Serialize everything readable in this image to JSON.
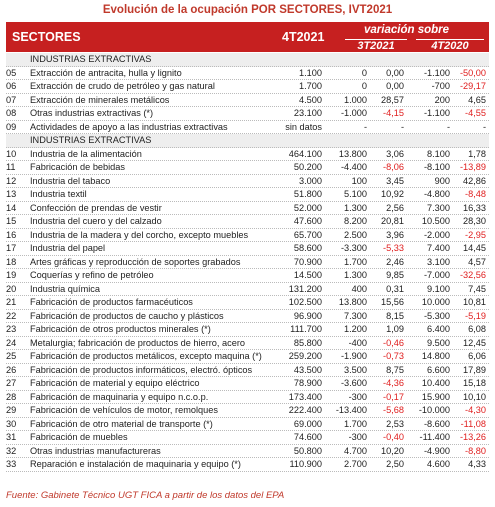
{
  "title": "Evolución de la ocupación POR SECTORES, IVT2021",
  "header": {
    "sectores": "SECTORES",
    "col_4t2021": "4T2021",
    "variacion": "variación sobre",
    "col_3t2021": "3T2021",
    "col_4t2020": "4T2020"
  },
  "rows": [
    {
      "group": "INDUSTRIAS EXTRACTIVAS"
    },
    {
      "code": "05",
      "name": "Extracción de antracita, hulla y lignito",
      "v": "1.100",
      "a3": "0",
      "p3": "0,00",
      "a4": "-1.100",
      "p4": "-50,00"
    },
    {
      "code": "06",
      "name": "Extracción de crudo de petróleo y gas natural",
      "v": "1.700",
      "a3": "0",
      "p3": "0,00",
      "a4": "-700",
      "p4": "-29,17"
    },
    {
      "code": "07",
      "name": "Extracción de minerales metálicos",
      "v": "4.500",
      "a3": "1.000",
      "p3": "28,57",
      "a4": "200",
      "p4": "4,65"
    },
    {
      "code": "08",
      "name": "Otras industrias extractivas (*)",
      "v": "23.100",
      "a3": "-1.000",
      "p3": "-4,15",
      "a4": "-1.100",
      "p4": "-4,55"
    },
    {
      "code": "09",
      "name": "Actividades de apoyo a las industrias extractivas",
      "v": "sin datos",
      "a3": "-",
      "p3": "-",
      "a4": "-",
      "p4": "-"
    },
    {
      "group": "INDUSTRIAS EXTRACTIVAS"
    },
    {
      "code": "10",
      "name": "Industria de la alimentación",
      "v": "464.100",
      "a3": "13.800",
      "p3": "3,06",
      "a4": "8.100",
      "p4": "1,78"
    },
    {
      "code": "11",
      "name": "Fabricación de bebidas",
      "v": "50.200",
      "a3": "-4.400",
      "p3": "-8,06",
      "a4": "-8.100",
      "p4": "-13,89"
    },
    {
      "code": "12",
      "name": "Industria del tabaco",
      "v": "3.000",
      "a3": "100",
      "p3": "3,45",
      "a4": "900",
      "p4": "42,86"
    },
    {
      "code": "13",
      "name": "Industria textil",
      "v": "51.800",
      "a3": "5.100",
      "p3": "10,92",
      "a4": "-4.800",
      "p4": "-8,48"
    },
    {
      "code": "14",
      "name": "Confección de prendas de vestir",
      "v": "52.000",
      "a3": "1.300",
      "p3": "2,56",
      "a4": "7.300",
      "p4": "16,33"
    },
    {
      "code": "15",
      "name": "Industria del cuero y del calzado",
      "v": "47.600",
      "a3": "8.200",
      "p3": "20,81",
      "a4": "10.500",
      "p4": "28,30"
    },
    {
      "code": "16",
      "name": "Industria de la madera y del corcho, excepto muebles",
      "v": "65.700",
      "a3": "2.500",
      "p3": "3,96",
      "a4": "-2.000",
      "p4": "-2,95"
    },
    {
      "code": "17",
      "name": "Industria del papel",
      "v": "58.600",
      "a3": "-3.300",
      "p3": "-5,33",
      "a4": "7.400",
      "p4": "14,45"
    },
    {
      "code": "18",
      "name": "Artes gráficas y reproducción de soportes grabados",
      "v": "70.900",
      "a3": "1.700",
      "p3": "2,46",
      "a4": "3.100",
      "p4": "4,57"
    },
    {
      "code": "19",
      "name": "Coquerías y refino de petróleo",
      "v": "14.500",
      "a3": "1.300",
      "p3": "9,85",
      "a4": "-7.000",
      "p4": "-32,56"
    },
    {
      "code": "20",
      "name": "Industria química",
      "v": "131.200",
      "a3": "400",
      "p3": "0,31",
      "a4": "9.100",
      "p4": "7,45"
    },
    {
      "code": "21",
      "name": "Fabricación de productos farmacéuticos",
      "v": "102.500",
      "a3": "13.800",
      "p3": "15,56",
      "a4": "10.000",
      "p4": "10,81"
    },
    {
      "code": "22",
      "name": "Fabricación de productos de caucho y plásticos",
      "v": "96.900",
      "a3": "7.300",
      "p3": "8,15",
      "a4": "-5.300",
      "p4": "-5,19"
    },
    {
      "code": "23",
      "name": "Fabricación de otros productos minerales (*)",
      "v": "111.700",
      "a3": "1.200",
      "p3": "1,09",
      "a4": "6.400",
      "p4": "6,08"
    },
    {
      "code": "24",
      "name": "Metalurgia; fabricación de productos de hierro, acero",
      "v": "85.800",
      "a3": "-400",
      "p3": "-0,46",
      "a4": "9.500",
      "p4": "12,45"
    },
    {
      "code": "25",
      "name": "Fabricación de productos metálicos, excepto maquina (*)",
      "v": "259.200",
      "a3": "-1.900",
      "p3": "-0,73",
      "a4": "14.800",
      "p4": "6,06"
    },
    {
      "code": "26",
      "name": "Fabricación de productos informáticos, electró. ópticos",
      "v": "43.500",
      "a3": "3.500",
      "p3": "8,75",
      "a4": "6.600",
      "p4": "17,89"
    },
    {
      "code": "27",
      "name": "Fabricación de material y equipo eléctrico",
      "v": "78.900",
      "a3": "-3.600",
      "p3": "-4,36",
      "a4": "10.400",
      "p4": "15,18"
    },
    {
      "code": "28",
      "name": "Fabricación de maquinaria y equipo n.c.o.p.",
      "v": "173.400",
      "a3": "-300",
      "p3": "-0,17",
      "a4": "15.900",
      "p4": "10,10"
    },
    {
      "code": "29",
      "name": "Fabricación de vehículos de motor, remolques",
      "v": "222.400",
      "a3": "-13.400",
      "p3": "-5,68",
      "a4": "-10.000",
      "p4": "-4,30"
    },
    {
      "code": "30",
      "name": "Fabricación de otro material de transporte (*)",
      "v": "69.000",
      "a3": "1.700",
      "p3": "2,53",
      "a4": "-8.600",
      "p4": "-11,08"
    },
    {
      "code": "31",
      "name": "Fabricación de muebles",
      "v": "74.600",
      "a3": "-300",
      "p3": "-0,40",
      "a4": "-11.400",
      "p4": "-13,26"
    },
    {
      "code": "32",
      "name": "Otras industrias manufactureras",
      "v": "50.800",
      "a3": "4.700",
      "p3": "10,20",
      "a4": "-4.900",
      "p4": "-8,80"
    },
    {
      "code": "33",
      "name": "Reparación e instalación de maquinaria y equipo (*)",
      "v": "110.900",
      "a3": "2.700",
      "p3": "2,50",
      "a4": "4.600",
      "p4": "4,33"
    }
  ],
  "footer": "Fuente: Gabinete Técnico UGT FICA a partir de los datos del EPA",
  "colors": {
    "accent": "#c62020",
    "negative": "#e02020",
    "title": "#c0392b"
  }
}
